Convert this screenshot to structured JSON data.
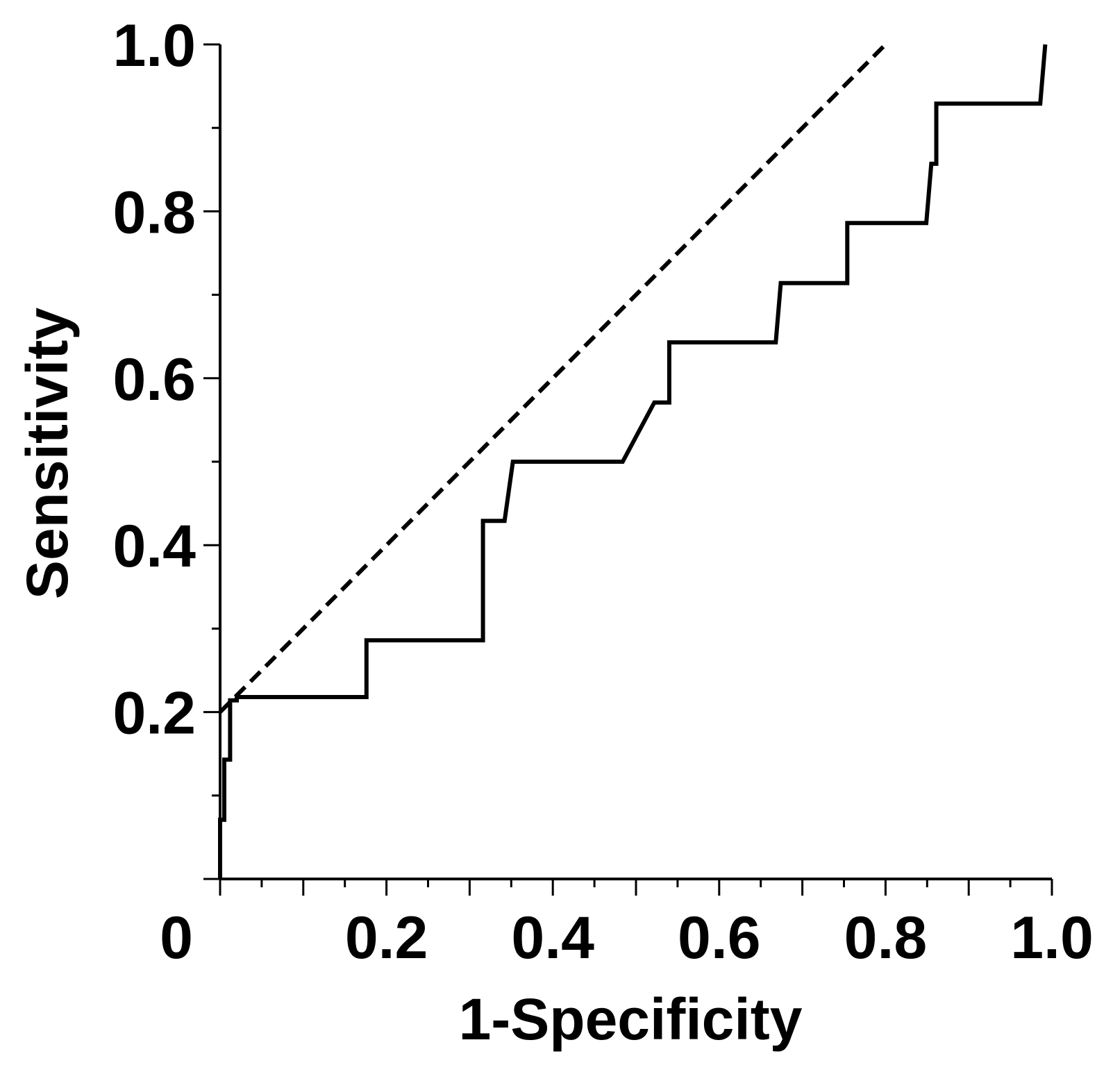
{
  "chart_data": {
    "type": "line",
    "title": "",
    "xlabel": "1-Specificity",
    "ylabel": "Sensitivity",
    "xlim": [
      0,
      1.0
    ],
    "ylim": [
      0,
      1.0
    ],
    "x_tick_labels": [
      "0",
      "0.2",
      "0.4",
      "0.6",
      "0.8",
      "1.0"
    ],
    "y_tick_labels": [
      "0.2",
      "0.4",
      "0.6",
      "0.8",
      "1.0"
    ],
    "grid": false,
    "legend": "none",
    "series": [
      {
        "style": "solid",
        "color": "#000000",
        "x": [
          0.0,
          0.0,
          0.005,
          0.005,
          0.012,
          0.012,
          0.02,
          0.02,
          0.176,
          0.176,
          0.316,
          0.316,
          0.342,
          0.352,
          0.484,
          0.522,
          0.54,
          0.54,
          0.668,
          0.674,
          0.754,
          0.754,
          0.849,
          0.855,
          0.861,
          0.861,
          0.986,
          0.992
        ],
        "y": [
          0.0,
          0.071,
          0.071,
          0.143,
          0.143,
          0.214,
          0.214,
          0.218,
          0.218,
          0.286,
          0.286,
          0.429,
          0.429,
          0.5,
          0.5,
          0.571,
          0.571,
          0.643,
          0.643,
          0.714,
          0.714,
          0.786,
          0.786,
          0.857,
          0.857,
          0.929,
          0.929,
          1.0
        ]
      },
      {
        "style": "dashed",
        "color": "#000000",
        "x": [
          0.0,
          0.8
        ],
        "y": [
          0.2,
          1.0
        ]
      }
    ]
  }
}
